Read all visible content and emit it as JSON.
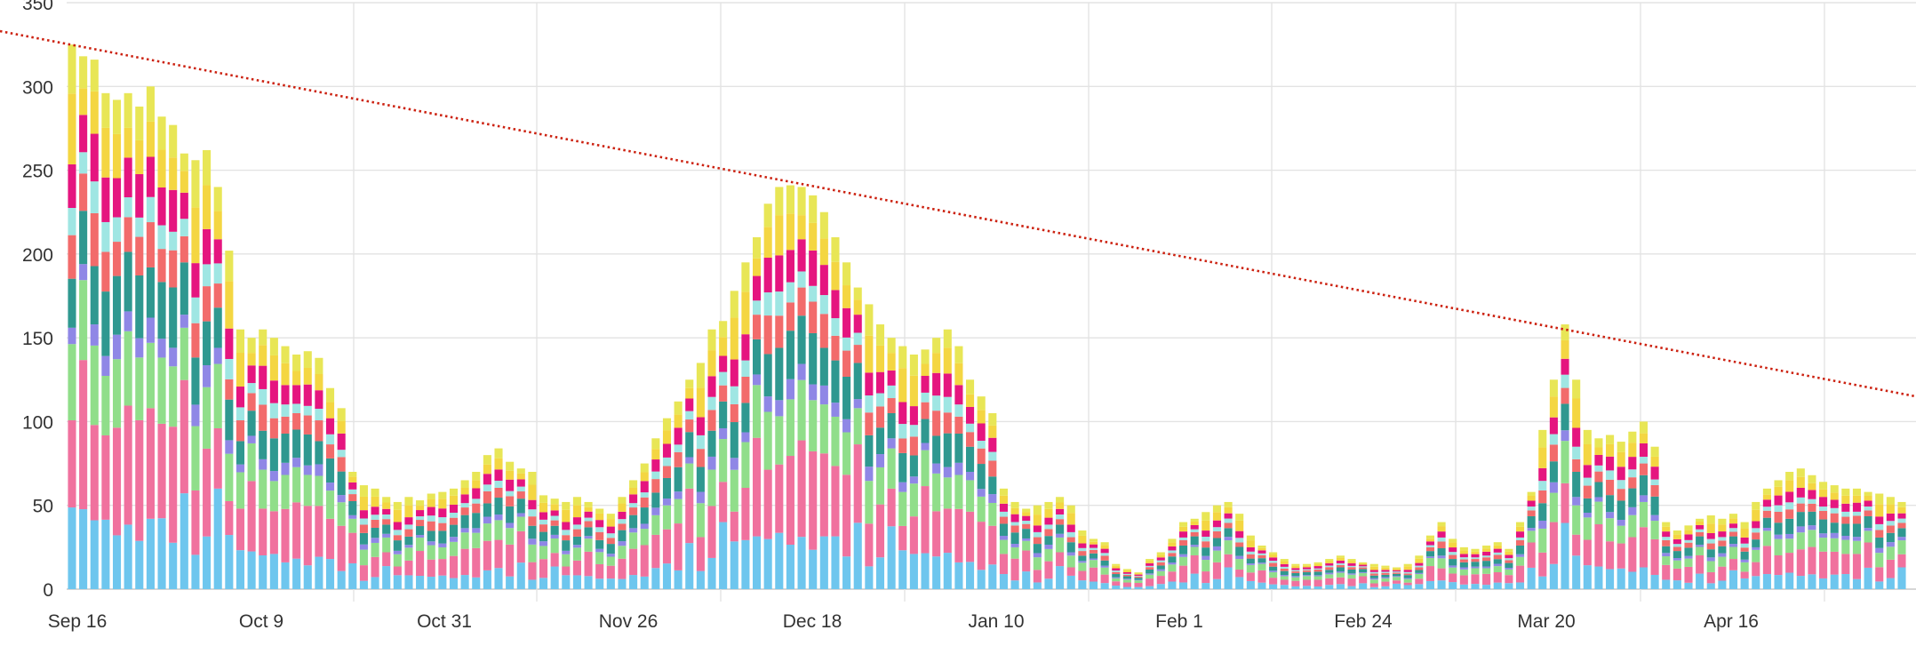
{
  "chart_data": {
    "type": "bar",
    "stacked": true,
    "title": "",
    "xlabel": "",
    "ylabel": "",
    "ylim": [
      0,
      350
    ],
    "y_ticks": [
      0,
      50,
      100,
      150,
      200,
      250,
      300,
      350
    ],
    "x_tick_labels": [
      "Sep 16",
      "Oct 9",
      "Oct 31",
      "Nov 26",
      "Dec 18",
      "Jan 10",
      "Feb 1",
      "Feb 24",
      "Mar 20",
      "Apr 16"
    ],
    "grid": true,
    "legend": "none",
    "series_colors": [
      "#6ec6ee",
      "#f0719e",
      "#90de8a",
      "#8f87e6",
      "#2f9890",
      "#f26b6b",
      "#9fe6e3",
      "#e5157f",
      "#f4d642",
      "#e8e656"
    ],
    "totals_min": 5,
    "trendline": {
      "style": "dotted",
      "color": "#cc2211",
      "start": {
        "x": "Sep 16",
        "y": 333
      },
      "end": {
        "x": "May 08",
        "y": 115
      }
    },
    "daily_totals": [
      325,
      318,
      316,
      296,
      292,
      296,
      288,
      300,
      282,
      277,
      260,
      256,
      262,
      240,
      202,
      155,
      150,
      155,
      150,
      145,
      140,
      142,
      138,
      120,
      108,
      70,
      62,
      60,
      55,
      52,
      55,
      53,
      57,
      58,
      60,
      65,
      70,
      80,
      84,
      76,
      72,
      70,
      56,
      54,
      52,
      55,
      52,
      48,
      45,
      55,
      65,
      75,
      90,
      102,
      112,
      125,
      135,
      155,
      160,
      178,
      195,
      210,
      230,
      240,
      241,
      240,
      235,
      225,
      210,
      195,
      180,
      170,
      158,
      150,
      145,
      140,
      143,
      150,
      155,
      145,
      125,
      115,
      105,
      60,
      52,
      48,
      50,
      52,
      55,
      50,
      35,
      30,
      28,
      15,
      12,
      10,
      18,
      22,
      30,
      40,
      42,
      46,
      50,
      52,
      45,
      32,
      26,
      22,
      18,
      15,
      15,
      16,
      18,
      20,
      18,
      16,
      15,
      14,
      13,
      15,
      20,
      32,
      40,
      30,
      25,
      24,
      26,
      28,
      24,
      40,
      58,
      95,
      125,
      158,
      125,
      95,
      90,
      92,
      88,
      94,
      100,
      85,
      40,
      35,
      38,
      42,
      44,
      42,
      45,
      40,
      52,
      60,
      65,
      70,
      72,
      68,
      64,
      62,
      60,
      60,
      58,
      57,
      55,
      52
    ],
    "series_share": [
      [
        0.15,
        0.16,
        0.14,
        0.03,
        0.09,
        0.08,
        0.05,
        0.08,
        0.13,
        0.09
      ],
      [
        0.15,
        0.28,
        0.15,
        0.03,
        0.1,
        0.07,
        0.04,
        0.07,
        0.05,
        0.06
      ],
      [
        0.13,
        0.18,
        0.15,
        0.04,
        0.11,
        0.1,
        0.06,
        0.09,
        0.08,
        0.06
      ],
      [
        0.14,
        0.17,
        0.12,
        0.04,
        0.13,
        0.08,
        0.06,
        0.09,
        0.1,
        0.07
      ],
      [
        0.11,
        0.22,
        0.14,
        0.05,
        0.12,
        0.07,
        0.05,
        0.08,
        0.09,
        0.07
      ],
      [
        0.13,
        0.24,
        0.15,
        0.04,
        0.12,
        0.07,
        0.04,
        0.08,
        0.06,
        0.07
      ],
      [
        0.1,
        0.25,
        0.13,
        0.04,
        0.13,
        0.08,
        0.04,
        0.09,
        0.07,
        0.07
      ],
      [
        0.14,
        0.22,
        0.13,
        0.05,
        0.1,
        0.09,
        0.05,
        0.08,
        0.07,
        0.07
      ],
      [
        0.15,
        0.2,
        0.14,
        0.04,
        0.12,
        0.07,
        0.05,
        0.08,
        0.08,
        0.07
      ],
      [
        0.1,
        0.25,
        0.13,
        0.04,
        0.13,
        0.08,
        0.04,
        0.09,
        0.07,
        0.07
      ],
      [
        0.22,
        0.26,
        0.12,
        0.03,
        0.12,
        0.06,
        0.04,
        0.06,
        0.05,
        0.04
      ],
      [
        0.08,
        0.15,
        0.15,
        0.05,
        0.11,
        0.08,
        0.06,
        0.08,
        0.13,
        0.11
      ],
      [
        0.12,
        0.2,
        0.14,
        0.05,
        0.1,
        0.08,
        0.05,
        0.08,
        0.1,
        0.08
      ],
      [
        0.25,
        0.15,
        0.16,
        0.04,
        0.1,
        0.06,
        0.05,
        0.06,
        0.07,
        0.06
      ],
      [
        0.16,
        0.1,
        0.14,
        0.04,
        0.12,
        0.06,
        0.06,
        0.09,
        0.14,
        0.09
      ]
    ]
  }
}
